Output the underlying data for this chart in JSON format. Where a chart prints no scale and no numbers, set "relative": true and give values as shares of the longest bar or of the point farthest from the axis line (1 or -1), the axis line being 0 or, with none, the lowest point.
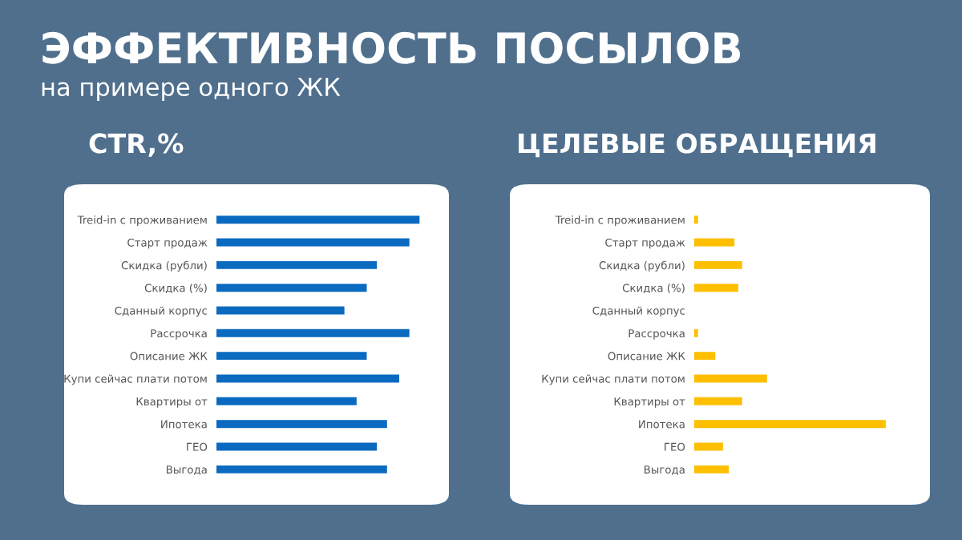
{
  "chart_data": [
    {
      "type": "bar",
      "orientation": "horizontal",
      "relative": true,
      "title": "CTR,%",
      "annotations": [
        "ЭФФЕКТИВНОСТЬ ПОСЫЛОВ",
        "на примере одного ЖК"
      ],
      "categories": [
        "Treid-in с проживанием",
        "Старт продаж",
        "Скидка (рубли)",
        "Скидка (%)",
        "Сданный корпус",
        "Рассрочка",
        "Описание ЖК",
        "Купи сейчас плати потом",
        "Квартиры от",
        "Ипотека",
        "ГЕО",
        "Выгода"
      ],
      "series": [
        {
          "color": "#0a6ac0",
          "values": [
            1,
            0.95,
            0.79,
            0.74,
            0.63,
            0.95,
            0.74,
            0.9,
            0.69,
            0.84,
            0.79,
            0.84
          ]
        }
      ],
      "tick_labels": "y"
    },
    {
      "type": "bar",
      "orientation": "horizontal",
      "relative": true,
      "title": "ЦЕЛЕВЫЕ ОБРАЩЕНИЯ",
      "categories": [
        "Treid-in с проживанием",
        "Старт продаж",
        "Скидка (рубли)",
        "Скидка (%)",
        "Сданный корпус",
        "Рассрочка",
        "Описание ЖК",
        "Купи сейчас плати потом",
        "Квартиры от",
        "Ипотека",
        "ГЕО",
        "Выгода"
      ],
      "series": [
        {
          "color": "#fdbf00",
          "values": [
            0.02,
            0.21,
            0.25,
            0.23,
            0,
            0.02,
            0.11,
            0.38,
            0.25,
            1,
            0.15,
            0.18
          ]
        }
      ],
      "tick_labels": "y"
    }
  ]
}
